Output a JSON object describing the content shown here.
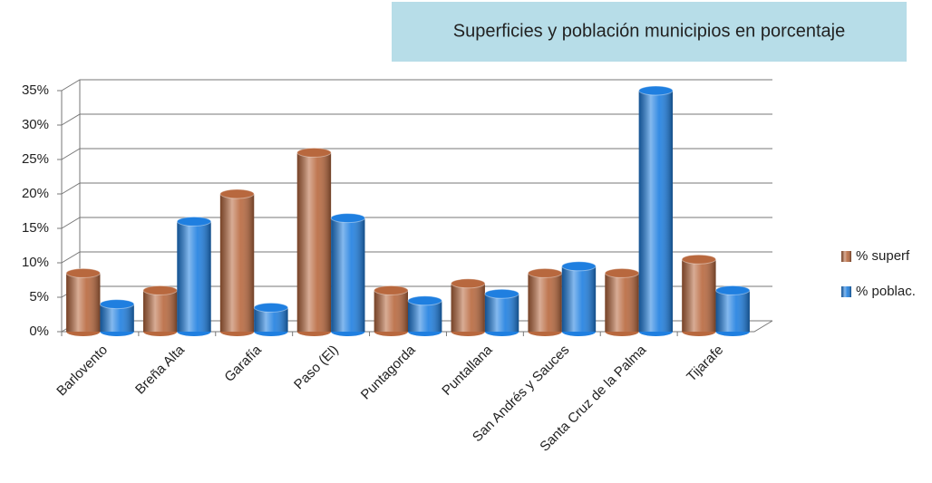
{
  "chart_data": {
    "type": "bar",
    "title": "Superficies y población municipios en porcentaje",
    "categories": [
      "Barlovento",
      "Breña Alta",
      "Garafía",
      "Paso (El)",
      "Puntagorda",
      "Puntallana",
      "San Andrés y Sauces",
      "Santa Cruz de la Palma",
      "Tijarafe"
    ],
    "series": [
      {
        "name": "% superf",
        "color": "#b8683e",
        "values": [
          8.5,
          6,
          20,
          26,
          6,
          7,
          8.5,
          8.5,
          10.5
        ]
      },
      {
        "name": "% poblac.",
        "color": "#1f7fe0",
        "values": [
          4,
          16,
          3.5,
          16.5,
          4.5,
          5.5,
          9.5,
          35,
          6
        ]
      }
    ],
    "ylim": [
      0,
      35
    ],
    "yticks": [
      {
        "value": 0,
        "label": "0%"
      },
      {
        "value": 5,
        "label": "5%"
      },
      {
        "value": 10,
        "label": "10%"
      },
      {
        "value": 15,
        "label": "15%"
      },
      {
        "value": 20,
        "label": "20%"
      },
      {
        "value": 25,
        "label": "25%"
      },
      {
        "value": 30,
        "label": "30%"
      },
      {
        "value": 35,
        "label": "35%"
      }
    ],
    "grid": true,
    "legend": "right"
  }
}
